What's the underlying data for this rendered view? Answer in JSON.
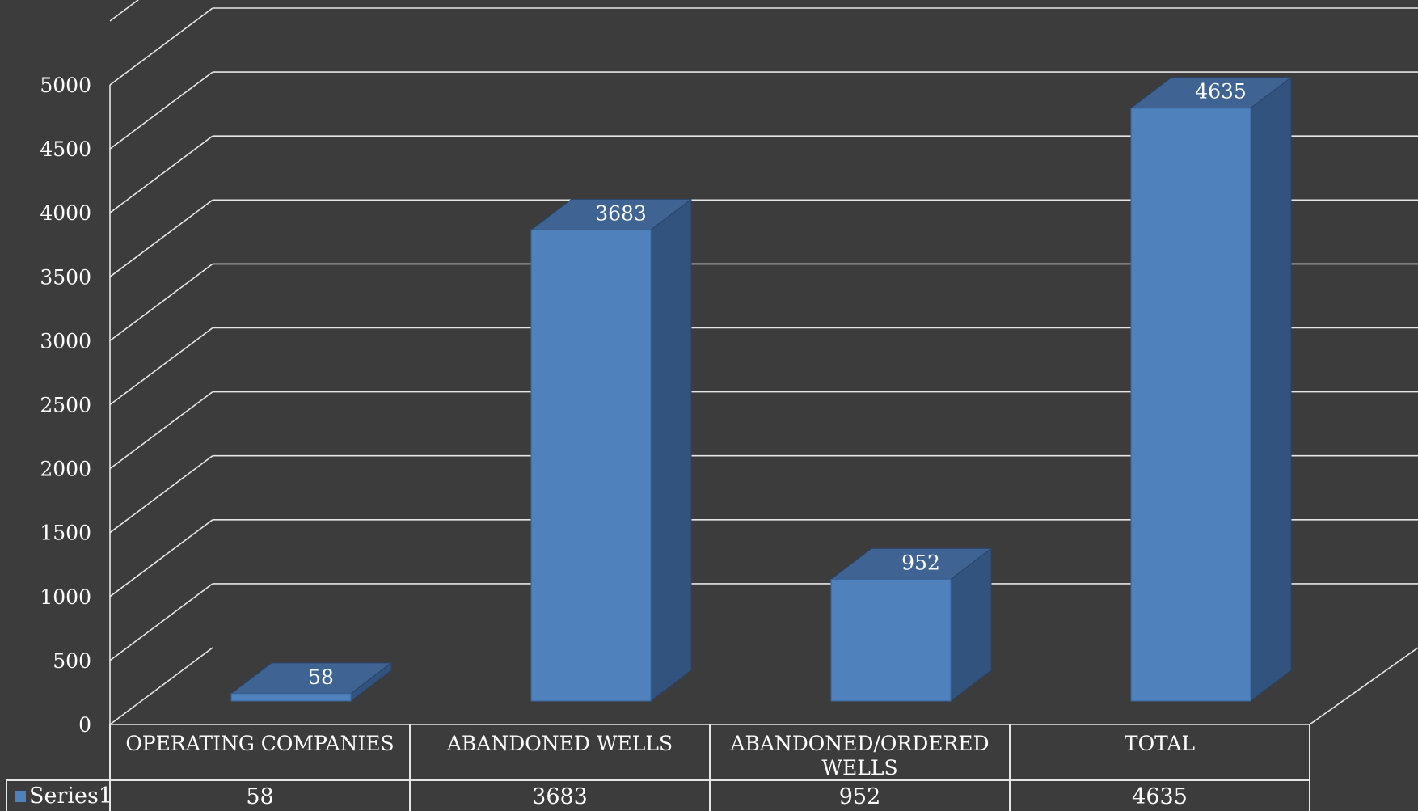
{
  "colors": {
    "background": "#3c3c3c",
    "grid": "#e6e6e6",
    "bar_front": "#4f81bd",
    "bar_side": "#31537d",
    "bar_top": "#3f6494",
    "text": "#ffffff"
  },
  "chart_data": {
    "type": "bar",
    "style": "3d-column",
    "categories": [
      "OPERATING COMPANIES",
      "ABANDONED WELLS",
      "ABANDONED/ORDERED WELLS",
      "TOTAL"
    ],
    "category_label_lines": [
      [
        "OPERATING COMPANIES"
      ],
      [
        "ABANDONED WELLS"
      ],
      [
        "ABANDONED/ORDERED",
        "WELLS"
      ],
      [
        "TOTAL"
      ]
    ],
    "series": [
      {
        "name": "Series1",
        "values": [
          58,
          3683,
          952,
          4635
        ]
      }
    ],
    "data_labels": [
      "58",
      "3683",
      "952",
      "4635"
    ],
    "table_values": [
      "58",
      "3683",
      "952",
      "4635"
    ],
    "yticks": [
      "0",
      "500",
      "1000",
      "1500",
      "2000",
      "2500",
      "3000",
      "3500",
      "4000",
      "4500",
      "5000"
    ],
    "ylim": [
      0,
      5000
    ],
    "title": "",
    "xlabel": "",
    "ylabel": "",
    "grid": true,
    "data_table": true,
    "legend_in_table": true
  }
}
